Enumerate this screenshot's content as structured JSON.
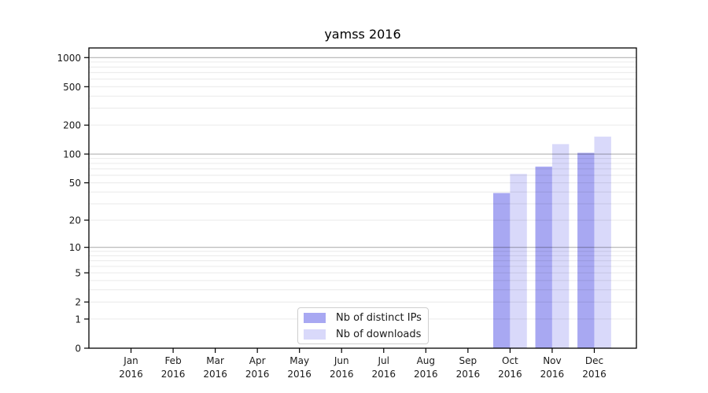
{
  "figure": {
    "background": "#ffffff"
  },
  "chart_data": {
    "type": "bar",
    "title": "yamss 2016",
    "y_scale": "log10(value+1)",
    "y_axis_decades_max": 3.1,
    "ylim": [
      0,
      1258
    ],
    "grid": {
      "major_color": "#b3b3b3",
      "minor_color": "#e9e9e9",
      "majors": [
        10,
        100,
        1000
      ]
    },
    "axis_color": "#000000",
    "tick_label_color": "#1a1a1a",
    "year": "2016",
    "categories": [
      "Jan",
      "Feb",
      "Mar",
      "Apr",
      "May",
      "Jun",
      "Jul",
      "Aug",
      "Sep",
      "Oct",
      "Nov",
      "Dec"
    ],
    "y_ticks": [
      0,
      1,
      2,
      5,
      10,
      20,
      50,
      100,
      200,
      500,
      1000
    ],
    "series": [
      {
        "name": "Nb of distinct IPs",
        "color": "#a8a8f2",
        "values": [
          0,
          0,
          0,
          0,
          0,
          0,
          0,
          0,
          0,
          39,
          74,
          103
        ]
      },
      {
        "name": "Nb of downloads",
        "color": "#d9d9fa",
        "values": [
          0,
          0,
          0,
          0,
          0,
          0,
          0,
          0,
          0,
          62,
          127,
          152
        ]
      }
    ],
    "legend": {
      "position": "lower-center-inside"
    }
  }
}
